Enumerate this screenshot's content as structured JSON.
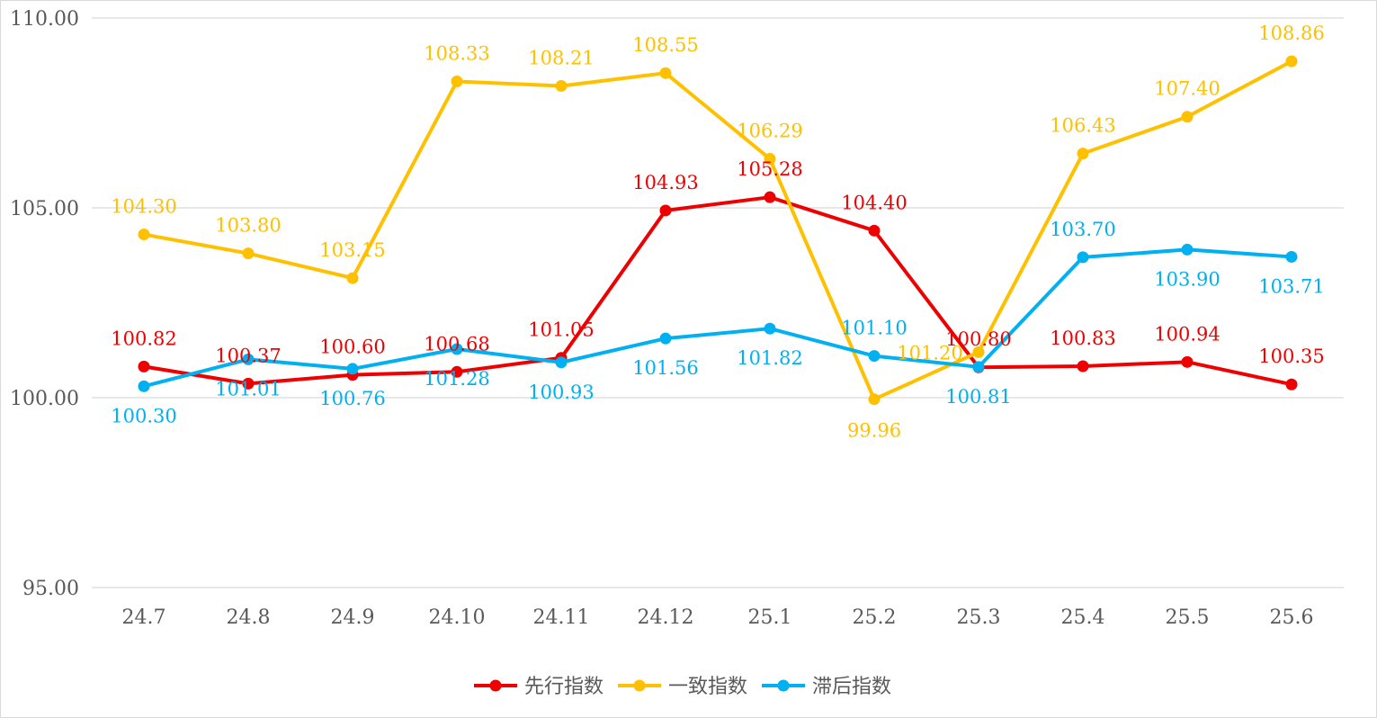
{
  "chart_data": {
    "type": "line",
    "categories": [
      "24.7",
      "24.8",
      "24.9",
      "24.10",
      "24.11",
      "24.12",
      "25.1",
      "25.2",
      "25.3",
      "25.4",
      "25.5",
      "25.6"
    ],
    "ylim": [
      95,
      110
    ],
    "yticks": [
      "95.00",
      "100.00",
      "105.00",
      "110.00"
    ],
    "grid": true,
    "legend_position": "bottom",
    "series": [
      {
        "name": "先行指数",
        "color": "#ee0000",
        "values": [
          100.82,
          100.37,
          100.6,
          100.68,
          101.05,
          104.93,
          105.28,
          104.4,
          100.8,
          100.83,
          100.94,
          100.35
        ],
        "labels": [
          "100.82",
          "100.37",
          "100.60",
          "100.68",
          "101.05",
          "104.93",
          "105.28",
          "104.40",
          "100.80",
          "100.83",
          "100.94",
          "100.35"
        ]
      },
      {
        "name": "一致指数",
        "color": "#ffc000",
        "values": [
          104.3,
          103.8,
          103.15,
          108.33,
          108.21,
          108.55,
          106.29,
          99.96,
          101.2,
          106.43,
          107.4,
          108.86
        ],
        "labels": [
          "104.30",
          "103.80",
          "103.15",
          "108.33",
          "108.21",
          "108.55",
          "106.29",
          "99.96",
          "101.20",
          "106.43",
          "107.40",
          "108.86"
        ]
      },
      {
        "name": "滞后指数",
        "color": "#00b0f0",
        "values": [
          100.3,
          101.01,
          100.76,
          101.28,
          100.93,
          101.56,
          101.82,
          101.1,
          100.81,
          103.7,
          103.9,
          103.71
        ],
        "labels": [
          "100.30",
          "101.01",
          "100.76",
          "101.28",
          "100.93",
          "101.56",
          "101.82",
          "101.10",
          "100.81",
          "103.70",
          "103.90",
          "103.71"
        ]
      }
    ]
  }
}
